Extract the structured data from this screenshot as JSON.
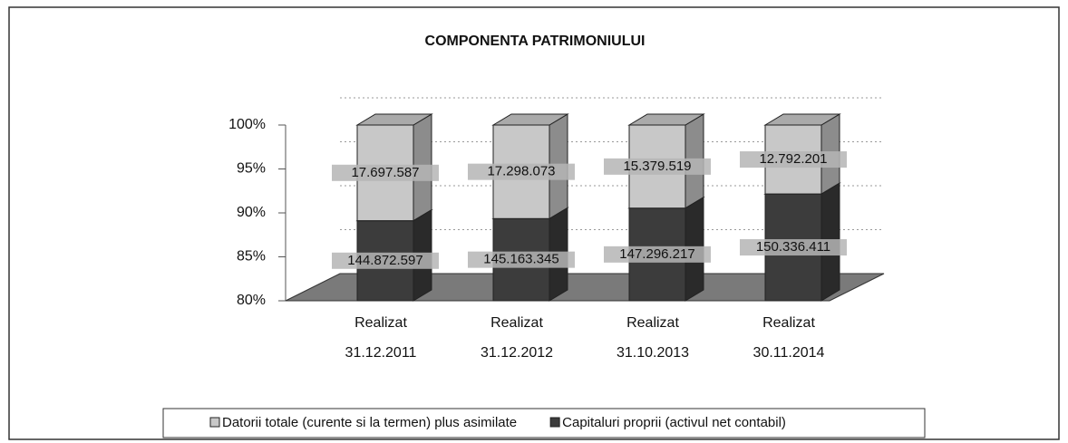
{
  "chart_data": {
    "type": "bar3d",
    "stacking": "percent",
    "title": "COMPONENTA PATRIMONIULUI",
    "categories": [
      [
        "Realizat",
        "31.12.2011"
      ],
      [
        "Realizat",
        "31.12.2012"
      ],
      [
        "Realizat",
        "31.10.2013"
      ],
      [
        "Realizat",
        "30.11.2014"
      ]
    ],
    "series": [
      {
        "name": "Capitaluri proprii (activul net contabil)",
        "color": "#3c3c3c",
        "values": [
          144872597,
          145163345,
          147296217,
          150336411
        ],
        "value_labels": [
          "144.872.597",
          "145.163.345",
          "147.296.217",
          "150.336.411"
        ]
      },
      {
        "name": "Datorii totale (curente si la termen) plus asimilate",
        "color": "#c8c8c8",
        "values": [
          17697587,
          17298073,
          15379519,
          12792201
        ],
        "value_labels": [
          "17.697.587",
          "17.298.073",
          "15.379.519",
          "12.792.201"
        ]
      }
    ],
    "legend_order": [
      1,
      0
    ],
    "ylim": [
      80,
      100
    ],
    "yticks": [
      {
        "value": 80,
        "label": "80%"
      },
      {
        "value": 85,
        "label": "85%"
      },
      {
        "value": 90,
        "label": "90%"
      },
      {
        "value": 95,
        "label": "95%"
      },
      {
        "value": 100,
        "label": "100%"
      }
    ],
    "grid": true
  }
}
